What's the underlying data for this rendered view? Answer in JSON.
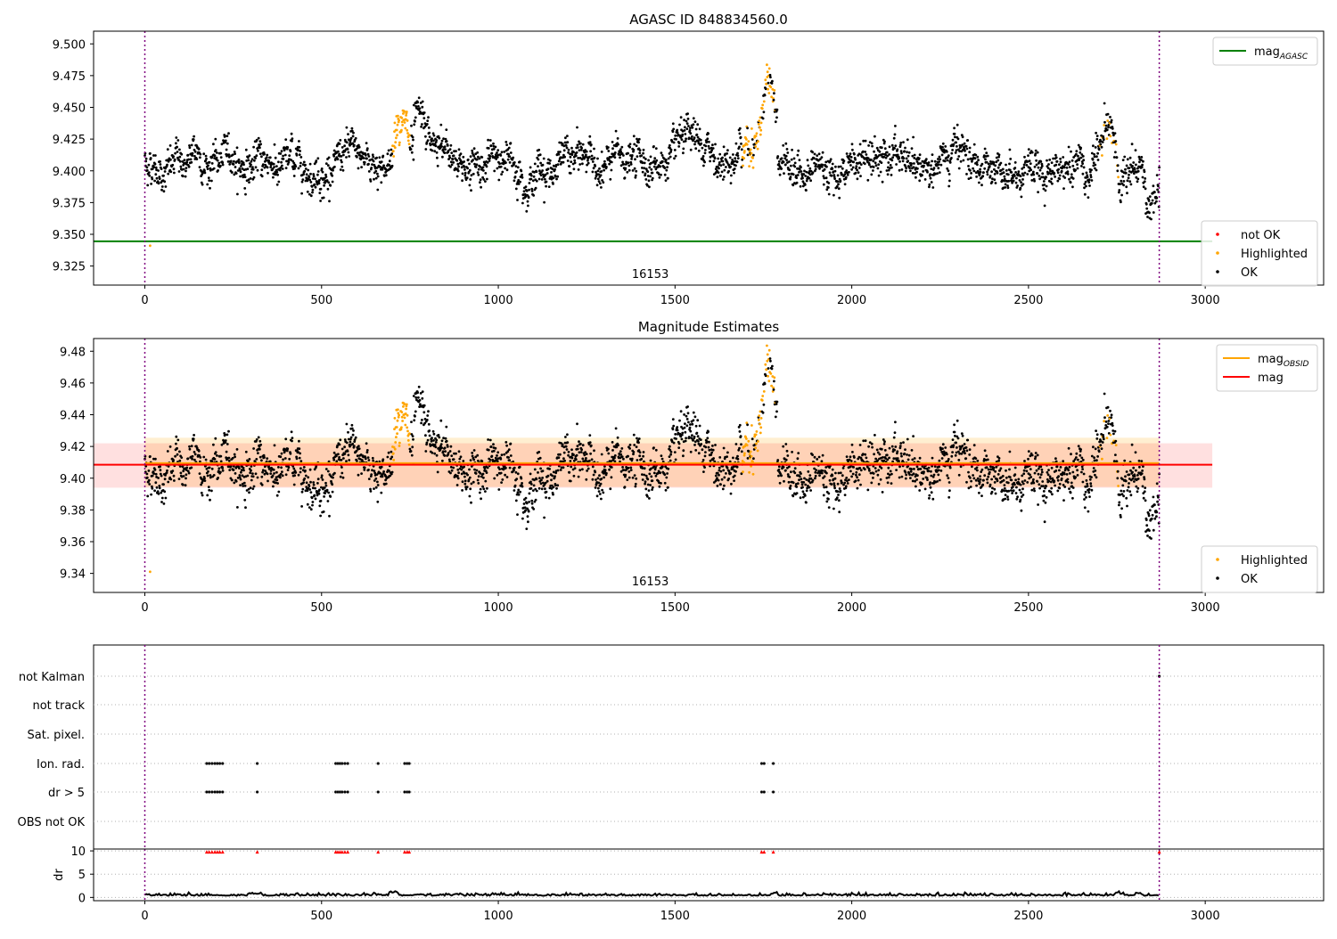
{
  "chart_data": [
    {
      "type": "scatter",
      "title": "AGASC ID 848834560.0",
      "xlim": [
        -145,
        3335
      ],
      "ylim": [
        9.31,
        9.51
      ],
      "xticks": [
        "0",
        "500",
        "1000",
        "1500",
        "2000",
        "2500",
        "3000"
      ],
      "yticks": [
        "9.325",
        "9.350",
        "9.375",
        "9.400",
        "9.425",
        "9.450",
        "9.475",
        "9.500"
      ],
      "xtick_values": [
        0,
        500,
        1000,
        1500,
        2000,
        2500,
        3000
      ],
      "ytick_values": [
        9.325,
        9.35,
        9.375,
        9.4,
        9.425,
        9.45,
        9.475,
        9.5
      ],
      "obsid_label": "16153",
      "obs_bounds": [
        0,
        2870
      ],
      "lines": [
        {
          "name": "mag_AGASC",
          "value": 9.3445,
          "color": "#008000",
          "x": [
            -145,
            3020
          ]
        }
      ],
      "legend_top": [
        {
          "label": "mag",
          "sub": "AGASC",
          "color": "#008000"
        }
      ],
      "legend_bottom": [
        {
          "label": "not OK",
          "color": "#ff0000"
        },
        {
          "label": "Highlighted",
          "color": "#ffa500"
        },
        {
          "label": "OK",
          "color": "#000000"
        }
      ],
      "series_note": "OK points: ~2870 samples, mean ~9.407, std ~0.012; highlighted excursions near t=720 (~9.46), t=1750 (~9.465), t=2730 (~9.445); single low point at t=15 (9.341)"
    },
    {
      "type": "scatter",
      "title": "Magnitude Estimates",
      "xlim": [
        -145,
        3335
      ],
      "ylim": [
        9.328,
        9.488
      ],
      "xticks": [
        "0",
        "500",
        "1000",
        "1500",
        "2000",
        "2500",
        "3000"
      ],
      "yticks": [
        "9.34",
        "9.36",
        "9.38",
        "9.40",
        "9.42",
        "9.44",
        "9.46",
        "9.48"
      ],
      "xtick_values": [
        0,
        500,
        1000,
        1500,
        2000,
        2500,
        3000
      ],
      "ytick_values": [
        9.34,
        9.36,
        9.38,
        9.4,
        9.42,
        9.44,
        9.46,
        9.48
      ],
      "obsid_label": "16153",
      "obs_bounds": [
        0,
        2870
      ],
      "lines": [
        {
          "name": "mag_OBSID",
          "value": 9.4095,
          "color": "#ffa500",
          "x": [
            0,
            2870
          ]
        },
        {
          "name": "mag",
          "value": 9.4085,
          "color": "#ff0000",
          "x": [
            -145,
            3020
          ]
        }
      ],
      "bands": [
        {
          "low": 9.3945,
          "high": 9.4255,
          "color": "#ffa500",
          "opacity": 0.18,
          "x": [
            0,
            2870
          ]
        },
        {
          "low": 9.394,
          "high": 9.422,
          "color": "#ff0000",
          "opacity": 0.12,
          "x": [
            -145,
            3020
          ]
        }
      ],
      "legend_top": [
        {
          "label": "mag",
          "sub": "OBSID",
          "color": "#ffa500"
        },
        {
          "label": "mag",
          "sub": "",
          "color": "#ff0000"
        }
      ],
      "legend_bottom": [
        {
          "label": "Highlighted",
          "color": "#ffa500"
        },
        {
          "label": "OK",
          "color": "#000000"
        }
      ]
    },
    {
      "type": "scatter",
      "title": "",
      "xlim": [
        -145,
        3335
      ],
      "categories": [
        "not Kalman",
        "not track",
        "Sat. pixel.",
        "Ion. rad.",
        "dr > 5",
        "OBS not OK"
      ],
      "flag_times": {
        "Ion. rad.": [
          175,
          182,
          190,
          198,
          205,
          212,
          220,
          318,
          540,
          546,
          552,
          558,
          566,
          574,
          660,
          735,
          742,
          748,
          1745,
          1752,
          1778
        ],
        "dr > 5": [
          175,
          182,
          190,
          198,
          205,
          212,
          220,
          318,
          540,
          546,
          552,
          558,
          566,
          574,
          660,
          735,
          742,
          748,
          1745,
          1752,
          1778
        ],
        "not Kalman": [
          2870
        ]
      },
      "obs_bounds": [
        0,
        2870
      ]
    },
    {
      "type": "line",
      "title": "",
      "ylabel": "dr",
      "xlim": [
        -145,
        3335
      ],
      "ylim": [
        -0.7,
        10.4
      ],
      "xticks": [
        "0",
        "500",
        "1000",
        "1500",
        "2000",
        "2500",
        "3000"
      ],
      "yticks": [
        "0",
        "5",
        "10"
      ],
      "xtick_values": [
        0,
        500,
        1000,
        1500,
        2000,
        2500,
        3000
      ],
      "ytick_values": [
        0,
        5,
        10
      ],
      "clip_markers_at": 9.8,
      "clip_times": [
        175,
        182,
        190,
        198,
        205,
        212,
        220,
        318,
        540,
        546,
        552,
        558,
        566,
        574,
        660,
        735,
        742,
        748,
        1745,
        1752,
        1778,
        2870
      ],
      "dr_baseline": 0.35,
      "obs_bounds": [
        0,
        2870
      ]
    }
  ]
}
